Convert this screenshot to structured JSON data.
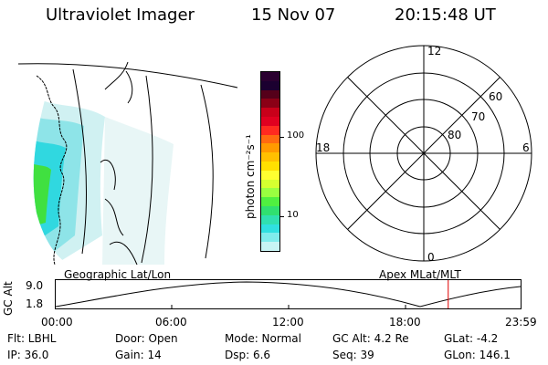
{
  "header": {
    "title": "Ultraviolet Imager",
    "date": "15 Nov 07",
    "time": "20:15:48 UT"
  },
  "colorbar": {
    "unit_label": "photon cm⁻²s⁻¹",
    "ticks": [
      "100",
      "10"
    ],
    "colors": [
      "#2a0030",
      "#1b0030",
      "#55001a",
      "#8a0016",
      "#c8001a",
      "#e00020",
      "#ff2a20",
      "#ff6a10",
      "#ff9a00",
      "#ffc000",
      "#ffe000",
      "#ffff30",
      "#d6ff30",
      "#9aff40",
      "#50f040",
      "#30e070",
      "#30e0b0",
      "#30e0e0",
      "#80ecec",
      "#c8f4f4"
    ]
  },
  "polar_plot": {
    "hour_labels": {
      "top": "12",
      "left": "18",
      "right": "6",
      "bottom": "0"
    },
    "lat_labels": [
      "60",
      "70",
      "80"
    ]
  },
  "timeline": {
    "left_title": "Geographic Lat/Lon",
    "right_title": "Apex MLat/MLT",
    "y_axis_label": "GC Alt",
    "y_ticks": [
      "9.0",
      "1.8"
    ],
    "x_ticks": [
      "00:00",
      "06:00",
      "12:00",
      "18:00",
      "23:59"
    ],
    "marker_time": "20:15:48"
  },
  "status": {
    "flt": "Flt: LBHL",
    "door": "Door: Open",
    "mode": "Mode: Normal",
    "gc_alt": "GC Alt: 4.2 Re",
    "glat": "GLat:  -4.2",
    "ip": "IP: 36.0",
    "gain": "Gain: 14",
    "dsp": "Dsp:     6.6",
    "seq": "Seq: 39",
    "glon": "GLon: 146.1"
  },
  "colors": {
    "timeline_marker": "#e00000",
    "aurora_cyan": "#30d8e0",
    "aurora_green": "#40e040",
    "aurora_pale": "#c8eef0"
  }
}
